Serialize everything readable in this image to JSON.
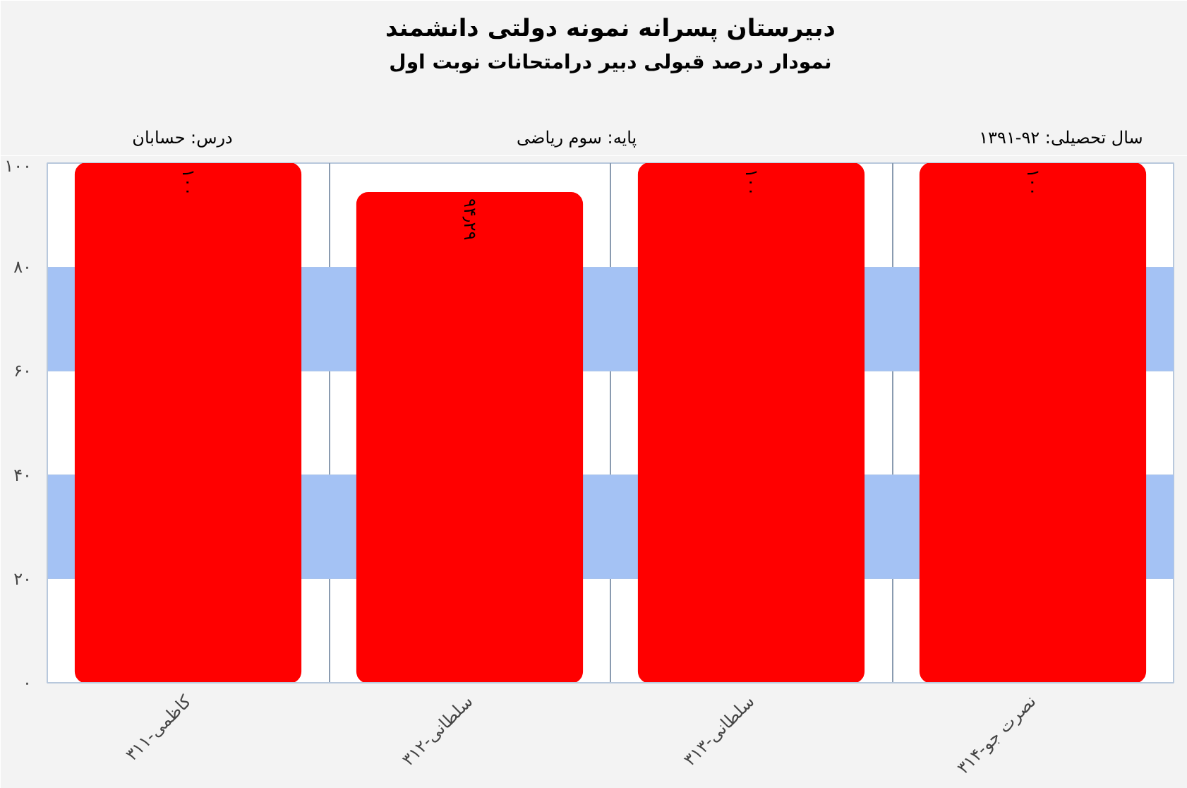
{
  "chart_data": {
    "type": "bar",
    "title": "دبیرستان پسرانه نمونه دولتی دانشمند",
    "subtitle": "نمودار درصد قبولی دبیر درامتحانات نوبت اول",
    "annotations": [
      "درس: حسابان",
      "پایه: سوم ریاضی",
      "سال تحصیلی: ۹۲-۱۳۹۱"
    ],
    "categories": [
      "کاظمی-۳۱۱",
      "سلطانی-۳۱۲",
      "سلطانی-۳۱۳",
      "نصرت جو-۳۱۴"
    ],
    "values": [
      100,
      94.29,
      100,
      100
    ],
    "color": "#ff0000",
    "value_labels": [
      "۱۰۰",
      "۹۴٫۲۹",
      "۱۰۰",
      "۱۰۰"
    ],
    "ylim": [
      0,
      100
    ],
    "yticks": [
      {
        "value": 0,
        "label": "۰"
      },
      {
        "value": 20,
        "label": "۲۰"
      },
      {
        "value": 40,
        "label": "۴۰"
      },
      {
        "value": 60,
        "label": "۶۰"
      },
      {
        "value": 80,
        "label": "۸۰"
      },
      {
        "value": 100,
        "label": "۱۰۰"
      }
    ],
    "bands": [
      {
        "axis": "y",
        "from": 20,
        "to": 40,
        "color": "#a4c2f4"
      },
      {
        "axis": "y",
        "from": 60,
        "to": 80,
        "color": "#a4c2f4"
      }
    ],
    "grid": true
  }
}
